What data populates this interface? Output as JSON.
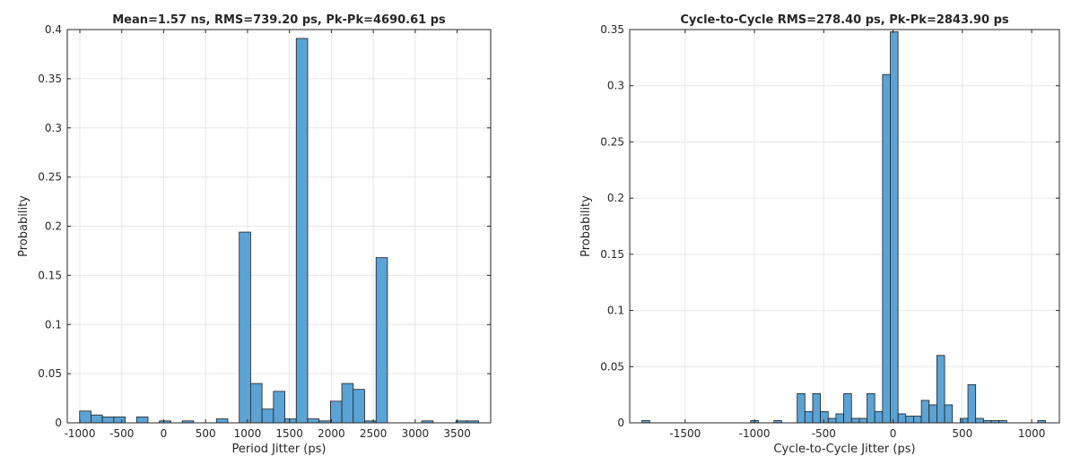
{
  "chart_data": [
    {
      "type": "bar",
      "title": "Mean=1.57 ns, RMS=739.20 ps, Pk-Pk=4690.61 ps",
      "xlabel": "Period Jitter (ps)",
      "ylabel": "Probability",
      "xlim": [
        -1150,
        3900
      ],
      "ylim": [
        0,
        0.4
      ],
      "xticks": [
        -1000,
        -500,
        0,
        500,
        1000,
        1500,
        2000,
        2500,
        3000,
        3500
      ],
      "xtick_labels": [
        "-1000",
        "-500",
        "0",
        "500",
        "1000",
        "1500",
        "2000",
        "2500",
        "3000",
        "3500"
      ],
      "yticks": [
        0,
        0.05,
        0.1,
        0.15,
        0.2,
        0.25,
        0.3,
        0.35,
        0.4
      ],
      "ytick_labels": [
        "0",
        "0.05",
        "0.1",
        "0.15",
        "0.2",
        "0.25",
        "0.3",
        "0.35",
        "0.4"
      ],
      "grid": true,
      "bar_color": "#5ba3d5",
      "bin_width": 136,
      "bins": [
        {
          "x": -935,
          "value": 0.012
        },
        {
          "x": -799,
          "value": 0.008
        },
        {
          "x": -663,
          "value": 0.006
        },
        {
          "x": -527,
          "value": 0.006
        },
        {
          "x": -255,
          "value": 0.006
        },
        {
          "x": 17,
          "value": 0.002
        },
        {
          "x": 289,
          "value": 0.002
        },
        {
          "x": 697,
          "value": 0.004
        },
        {
          "x": 969,
          "value": 0.194
        },
        {
          "x": 1105,
          "value": 0.04
        },
        {
          "x": 1241,
          "value": 0.014
        },
        {
          "x": 1377,
          "value": 0.032
        },
        {
          "x": 1513,
          "value": 0.004
        },
        {
          "x": 1649,
          "value": 0.391
        },
        {
          "x": 1785,
          "value": 0.004
        },
        {
          "x": 1921,
          "value": 0.002
        },
        {
          "x": 2057,
          "value": 0.022
        },
        {
          "x": 2193,
          "value": 0.04
        },
        {
          "x": 2329,
          "value": 0.034
        },
        {
          "x": 2465,
          "value": 0.002
        },
        {
          "x": 2601,
          "value": 0.168
        },
        {
          "x": 3145,
          "value": 0.002
        },
        {
          "x": 3553,
          "value": 0.002
        },
        {
          "x": 3689,
          "value": 0.002
        }
      ]
    },
    {
      "type": "bar",
      "title": "Cycle-to-Cycle RMS=278.40 ps, Pk-Pk=2843.90 ps",
      "xlabel": "Cycle-to-Cycle Jitter (ps)",
      "ylabel": "Probability",
      "xlim": [
        -1900,
        1200
      ],
      "ylim": [
        0,
        0.35
      ],
      "xticks": [
        -1500,
        -1000,
        -500,
        0,
        500,
        1000
      ],
      "xtick_labels": [
        "-1500",
        "-1000",
        "-500",
        "0",
        "500",
        "1000"
      ],
      "yticks": [
        0,
        0.05,
        0.1,
        0.15,
        0.2,
        0.25,
        0.3,
        0.35
      ],
      "ytick_labels": [
        "0",
        "0.05",
        "0.1",
        "0.15",
        "0.2",
        "0.25",
        "0.3",
        "0.35"
      ],
      "grid": true,
      "bar_color": "#5ba3d5",
      "bin_width": 56,
      "bins": [
        {
          "x": -1784,
          "value": 0.002
        },
        {
          "x": -1000,
          "value": 0.002
        },
        {
          "x": -832,
          "value": 0.002
        },
        {
          "x": -664,
          "value": 0.026
        },
        {
          "x": -608,
          "value": 0.01
        },
        {
          "x": -552,
          "value": 0.026
        },
        {
          "x": -496,
          "value": 0.01
        },
        {
          "x": -440,
          "value": 0.004
        },
        {
          "x": -384,
          "value": 0.008
        },
        {
          "x": -328,
          "value": 0.026
        },
        {
          "x": -272,
          "value": 0.004
        },
        {
          "x": -216,
          "value": 0.004
        },
        {
          "x": -160,
          "value": 0.026
        },
        {
          "x": -104,
          "value": 0.01
        },
        {
          "x": -48,
          "value": 0.31
        },
        {
          "x": 8,
          "value": 0.348
        },
        {
          "x": 64,
          "value": 0.008
        },
        {
          "x": 120,
          "value": 0.006
        },
        {
          "x": 176,
          "value": 0.006
        },
        {
          "x": 232,
          "value": 0.02
        },
        {
          "x": 288,
          "value": 0.016
        },
        {
          "x": 344,
          "value": 0.06
        },
        {
          "x": 400,
          "value": 0.016
        },
        {
          "x": 512,
          "value": 0.004
        },
        {
          "x": 568,
          "value": 0.034
        },
        {
          "x": 624,
          "value": 0.004
        },
        {
          "x": 680,
          "value": 0.002
        },
        {
          "x": 736,
          "value": 0.002
        },
        {
          "x": 792,
          "value": 0.002
        },
        {
          "x": 1072,
          "value": 0.002
        }
      ]
    }
  ]
}
